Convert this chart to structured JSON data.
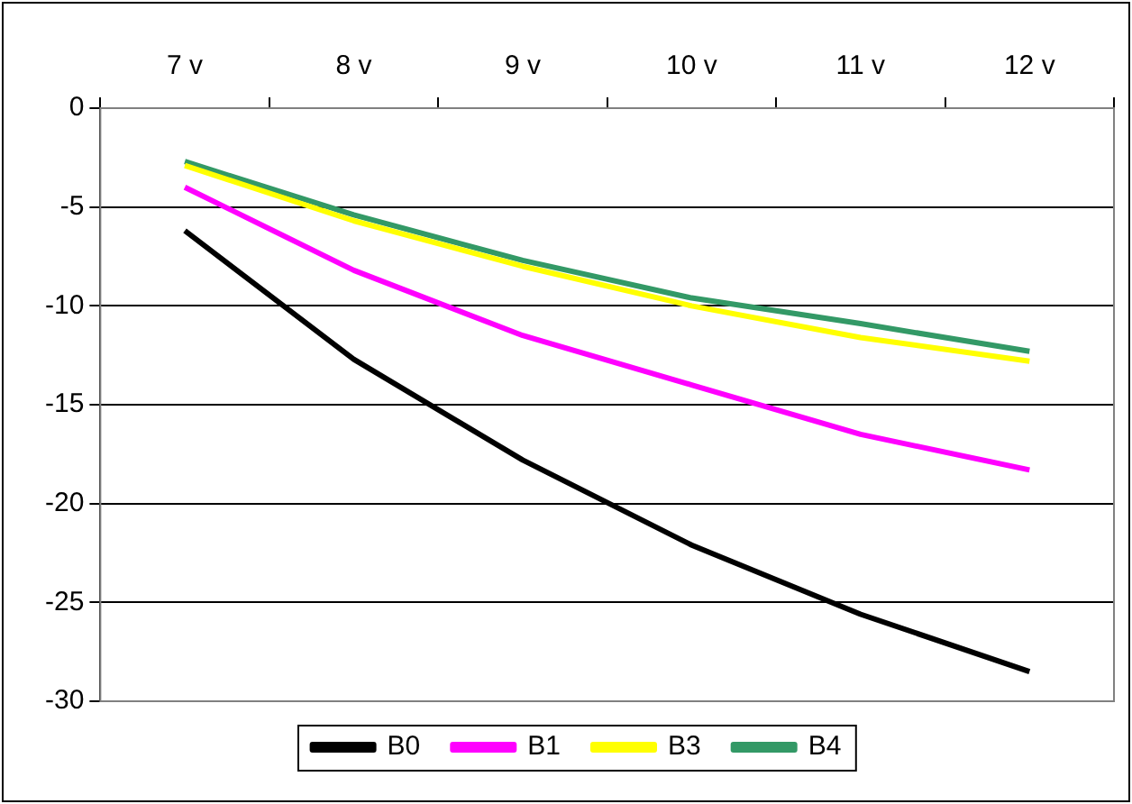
{
  "chart_data": {
    "type": "line",
    "categories": [
      "7 v",
      "8 v",
      "9 v",
      "10 v",
      "11 v",
      "12 v"
    ],
    "series": [
      {
        "name": "B0",
        "color": "#000000",
        "values": [
          -6.2,
          -12.7,
          -17.8,
          -22.1,
          -25.6,
          -28.5
        ]
      },
      {
        "name": "B1",
        "color": "#ff00ff",
        "values": [
          -4.0,
          -8.2,
          -11.5,
          -14.0,
          -16.5,
          -18.3
        ]
      },
      {
        "name": "B3",
        "color": "#ffff00",
        "values": [
          -2.9,
          -5.7,
          -8.0,
          -10.0,
          -11.6,
          -12.8
        ]
      },
      {
        "name": "B4",
        "color": "#339966",
        "values": [
          -2.7,
          -5.4,
          -7.7,
          -9.6,
          -10.9,
          -12.3
        ]
      }
    ],
    "ylim": [
      -30,
      0
    ],
    "yticks": [
      -30,
      -25,
      -20,
      -15,
      -10,
      -5,
      0
    ],
    "grid": "y",
    "legend": "bottom",
    "marker": "none",
    "line_style": "solid"
  }
}
